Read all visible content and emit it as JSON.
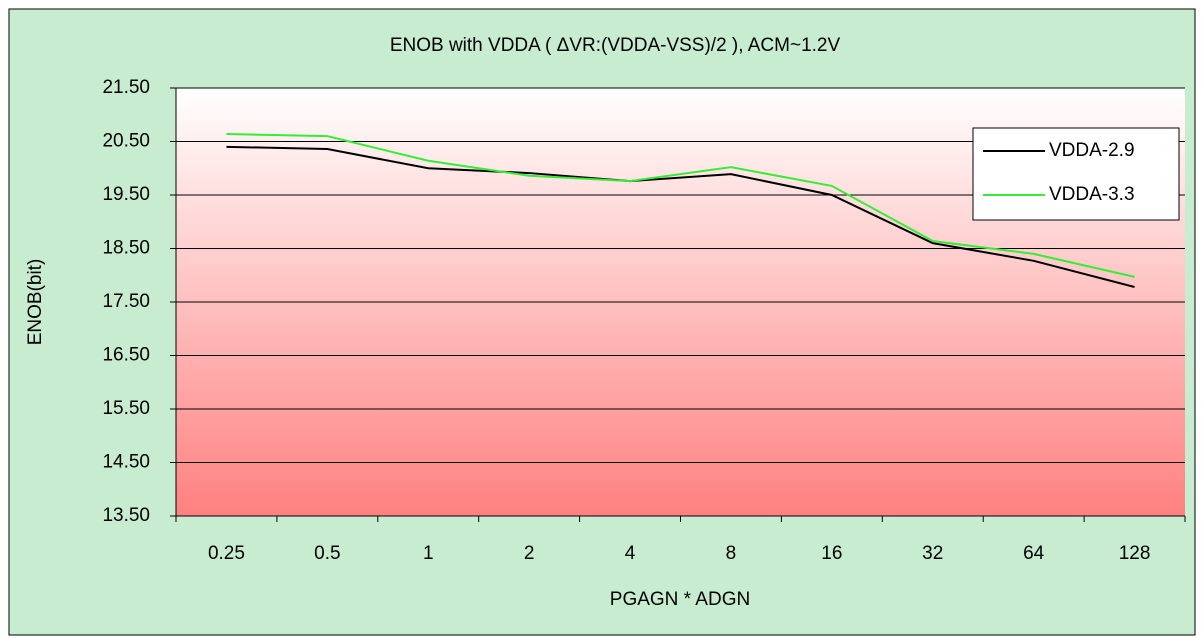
{
  "chart_data": {
    "type": "line",
    "title": "ENOB with VDDA ( ΔVR:(VDDA-VSS)/2 ), ACM~1.2V",
    "xlabel": "PGAGN * ADGN",
    "ylabel": "ENOB(bit)",
    "categories": [
      "0.25",
      "0.5",
      "1",
      "2",
      "4",
      "8",
      "16",
      "32",
      "64",
      "128"
    ],
    "series": [
      {
        "name": "VDDA-2.9",
        "color": "#000000",
        "values": [
          20.4,
          20.36,
          20.0,
          19.91,
          19.76,
          19.89,
          19.5,
          18.6,
          18.27,
          17.78
        ]
      },
      {
        "name": "VDDA-3.3",
        "color": "#33ee33",
        "values": [
          20.64,
          20.6,
          20.14,
          19.86,
          19.76,
          20.02,
          19.67,
          18.64,
          18.4,
          17.97
        ]
      }
    ],
    "ylim": [
      13.5,
      21.5
    ],
    "yticks": [
      {
        "value": 13.5,
        "label": "13.50"
      },
      {
        "value": 14.5,
        "label": "14.50"
      },
      {
        "value": 15.5,
        "label": "15.50"
      },
      {
        "value": 16.5,
        "label": "16.50"
      },
      {
        "value": 17.5,
        "label": "17.50"
      },
      {
        "value": 18.5,
        "label": "18.50"
      },
      {
        "value": 19.5,
        "label": "19.50"
      },
      {
        "value": 20.5,
        "label": "20.50"
      },
      {
        "value": 21.5,
        "label": "21.50"
      }
    ],
    "grid": true,
    "legend": "upper right"
  }
}
